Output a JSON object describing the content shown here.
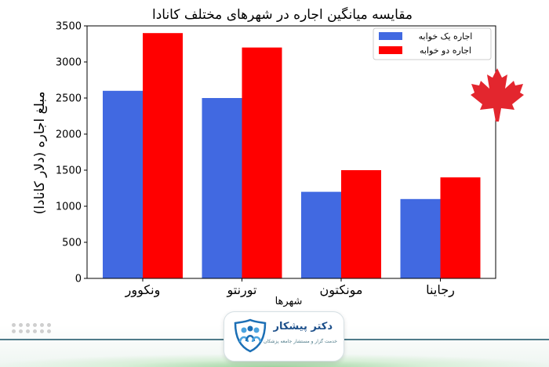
{
  "chart_data": {
    "type": "bar",
    "title": "مقایسه میانگین اجاره در شهرهای مختلف کانادا",
    "xlabel": "شهرها",
    "ylabel": "مبلغ اجاره (دلار کانادا)",
    "categories": [
      "ونکوور",
      "تورنتو",
      "مونکتون",
      "رجاینا"
    ],
    "series": [
      {
        "name": "اجاره یک خوابه",
        "color": "#4169e1",
        "values": [
          2600,
          2500,
          1200,
          1100
        ]
      },
      {
        "name": "اجاره دو خوابه",
        "color": "#ff0000",
        "values": [
          3400,
          3200,
          1500,
          1400
        ]
      }
    ],
    "ylim": [
      0,
      3500
    ],
    "yticks": [
      "0",
      "500",
      "1000",
      "1500",
      "2000",
      "2500",
      "3000",
      "3500"
    ],
    "legend_position": "top-right",
    "grid": false
  },
  "decorations": {
    "flag_icon": "maple-leaf-icon",
    "flag_color": "#e3262e"
  },
  "logo": {
    "title": "دکتر پیشکار",
    "subtitle": "خدمت گزار و مستشار جامعه پزشکان",
    "icon": "people-shield-icon"
  }
}
